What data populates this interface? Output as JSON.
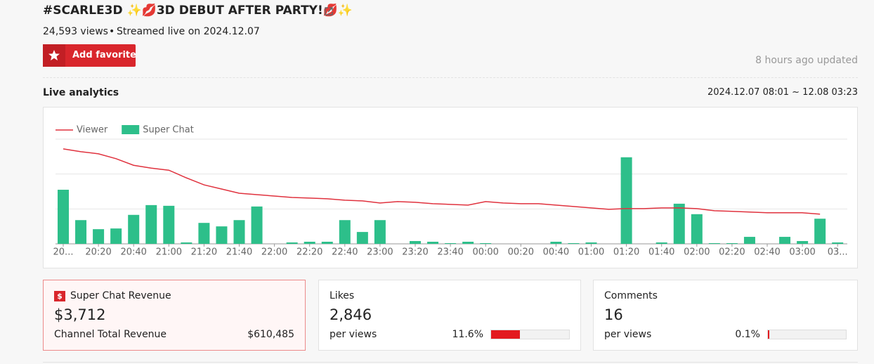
{
  "header": {
    "title": "#SCARLE3D ✨💋3D DEBUT AFTER PARTY!💋✨",
    "views": "24,593 views",
    "streamed": "Streamed live on 2024.12.07",
    "favorite_button": "Add favorite",
    "updated": "8 hours ago updated"
  },
  "analytics": {
    "title": "Live analytics",
    "range": "2024.12.07 08:01 ~ 12.08 03:23"
  },
  "chart_data": {
    "type": "bar_line",
    "categories": [
      "20...",
      null,
      "20:20",
      null,
      "20:40",
      null,
      "21:00",
      null,
      "21:20",
      null,
      "21:40",
      null,
      "22:00",
      null,
      "22:20",
      null,
      "22:40",
      null,
      "23:00",
      null,
      "23:20",
      null,
      "23:40",
      null,
      "00:00",
      null,
      "00:20",
      null,
      "00:40",
      null,
      "01:00",
      null,
      "01:20",
      null,
      "01:40",
      null,
      "02:00",
      null,
      "02:20",
      null,
      "02:40",
      null,
      "03:00",
      null,
      "03..."
    ],
    "series": [
      {
        "name": "Viewer",
        "color": "#e0323e",
        "kind": "line",
        "values": [
          2.72,
          2.64,
          2.58,
          2.44,
          2.25,
          2.17,
          2.11,
          1.89,
          1.69,
          1.57,
          1.45,
          1.41,
          1.37,
          1.33,
          1.31,
          1.29,
          1.25,
          1.23,
          1.17,
          1.21,
          1.19,
          1.15,
          1.13,
          1.11,
          1.21,
          1.17,
          1.15,
          1.15,
          1.11,
          1.07,
          1.03,
          0.99,
          1.01,
          1.01,
          1.03,
          1.03,
          1.01,
          0.95,
          0.93,
          0.91,
          0.89,
          0.89,
          0.89,
          0.85,
          null
        ]
      },
      {
        "name": "Super Chat",
        "color": "#2dbf8a",
        "kind": "bar",
        "values": [
          1.55,
          0.68,
          0.42,
          0.44,
          0.83,
          1.11,
          1.09,
          0.04,
          0.6,
          0.5,
          0.68,
          1.07,
          0,
          0.04,
          0.06,
          0.06,
          0.68,
          0.34,
          0.68,
          0,
          0.08,
          0.06,
          0.02,
          0.06,
          0.02,
          0,
          0,
          0,
          0.06,
          0.02,
          0.04,
          0,
          2.48,
          0,
          0.04,
          1.15,
          0.85,
          0.02,
          0.02,
          0.2,
          0,
          0.2,
          0.08,
          0.72,
          0.04
        ]
      }
    ],
    "ylim": [
      0,
      3
    ],
    "yticks": [
      0,
      1,
      2,
      3
    ],
    "grid": true,
    "legend": "top-left"
  },
  "cards": {
    "super_chat": {
      "icon": "$",
      "title": "Super Chat Revenue",
      "value": "$3,712",
      "sub_label": "Channel Total Revenue",
      "sub_value": "$610,485"
    },
    "likes": {
      "title": "Likes",
      "value": "2,846",
      "sub_label": "per views",
      "ratio": {
        "value": 11.6,
        "label": "11.6%"
      }
    },
    "comments": {
      "title": "Comments",
      "value": "16",
      "sub_label": "per views",
      "ratio": {
        "value": 0.1,
        "label": "0.1%"
      }
    }
  }
}
